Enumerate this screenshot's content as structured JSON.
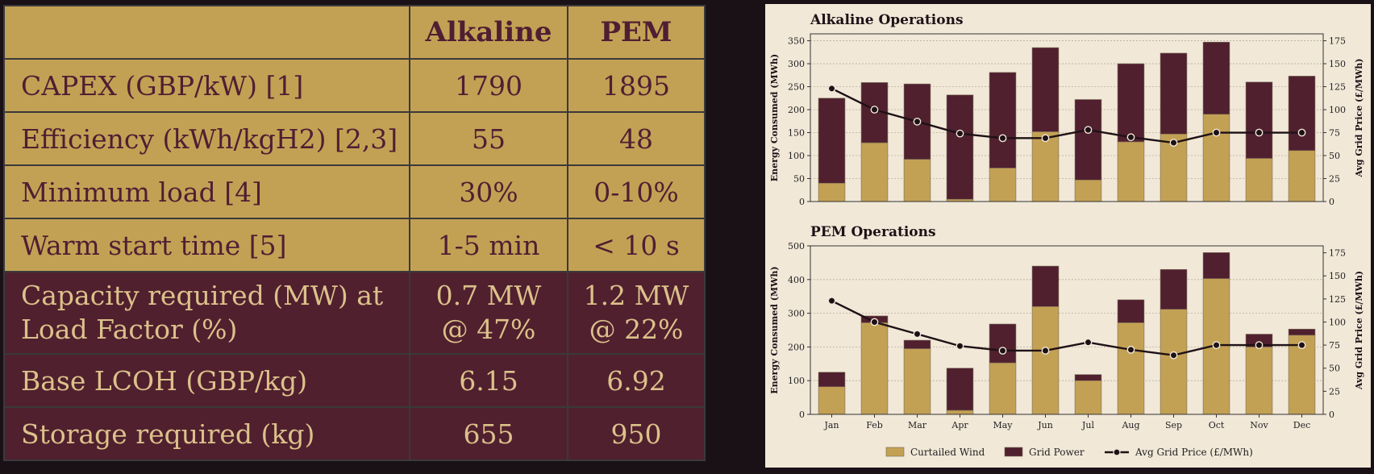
{
  "table": {
    "headers": [
      "",
      "Alkaline",
      "PEM"
    ],
    "rows": [
      {
        "label": "CAPEX (GBP/kW) [1]",
        "alkaline": "1790",
        "pem": "1895"
      },
      {
        "label": "Efficiency (kWh/kgH2) [2,3]",
        "alkaline": "55",
        "pem": "48"
      },
      {
        "label": "Minimum load [4]",
        "alkaline": "30%",
        "pem": "0-10%"
      },
      {
        "label": "Warm start time [5]",
        "alkaline": "1-5 min",
        "pem": "< 10 s"
      },
      {
        "label_line1": "Capacity required (MW) at",
        "label_line2": "Load Factor (%)",
        "alkaline_line1": "0.7 MW",
        "alkaline_line2": "@ 47%",
        "pem_line1": "1.2 MW",
        "pem_line2": "@ 22%"
      },
      {
        "label": "Base LCOH (GBP/kg)",
        "alkaline": "6.15",
        "pem": "6.92"
      },
      {
        "label": "Storage required (kg)",
        "alkaline": "655",
        "pem": "950"
      }
    ]
  },
  "colors": {
    "gold": "#c3a154",
    "wine": "#50202f",
    "price_line": "#1e1116",
    "panel_bg": "#f1e8d8"
  },
  "chart_data": [
    {
      "type": "bar",
      "stacked": true,
      "title": "Alkaline Operations",
      "ylabel": "Energy Consumed (MWh)",
      "y2label": "Avg Grid Price (£/MWh)",
      "categories": [
        "Jan",
        "Feb",
        "Mar",
        "Apr",
        "May",
        "Jun",
        "Jul",
        "Aug",
        "Sep",
        "Oct",
        "Nov",
        "Dec"
      ],
      "ylim": [
        0,
        365
      ],
      "yticks": [
        0,
        50,
        100,
        150,
        200,
        250,
        300,
        350
      ],
      "y2lim": [
        0,
        182.5
      ],
      "y2ticks": [
        0,
        25,
        50,
        75,
        100,
        125,
        150,
        175
      ],
      "series": [
        {
          "name": "Curtailed Wind",
          "values": [
            40,
            128,
            92,
            5,
            73,
            152,
            47,
            130,
            147,
            190,
            94,
            111
          ]
        },
        {
          "name": "Grid Power",
          "values": [
            185,
            131,
            164,
            227,
            208,
            183,
            175,
            170,
            176,
            157,
            166,
            162
          ]
        }
      ],
      "line": {
        "name": "Avg Grid Price (£/MWh)",
        "values": [
          123,
          100,
          87,
          74,
          69,
          69,
          78,
          70,
          64,
          75,
          75,
          75
        ]
      },
      "grid": true
    },
    {
      "type": "bar",
      "stacked": true,
      "title": "PEM Operations",
      "ylabel": "Energy Consumed (MWh)",
      "y2label": "Avg Grid Price (£/MWh)",
      "categories": [
        "Jan",
        "Feb",
        "Mar",
        "Apr",
        "May",
        "Jun",
        "Jul",
        "Aug",
        "Sep",
        "Oct",
        "Nov",
        "Dec"
      ],
      "ylim": [
        0,
        500
      ],
      "yticks": [
        0,
        100,
        200,
        300,
        400,
        500
      ],
      "y2lim": [
        0,
        182.5
      ],
      "y2ticks": [
        0,
        25,
        50,
        75,
        100,
        125,
        150,
        175
      ],
      "series": [
        {
          "name": "Curtailed Wind",
          "values": [
            82,
            272,
            195,
            12,
            153,
            320,
            100,
            272,
            312,
            403,
            200,
            235
          ]
        },
        {
          "name": "Grid Power",
          "values": [
            43,
            20,
            25,
            125,
            115,
            120,
            18,
            68,
            118,
            77,
            38,
            18
          ]
        }
      ],
      "line": {
        "name": "Avg Grid Price (£/MWh)",
        "values": [
          123,
          100,
          87,
          74,
          69,
          69,
          78,
          70,
          64,
          75,
          75,
          75
        ]
      },
      "grid": true
    }
  ],
  "legend": {
    "items": [
      "Curtailed Wind",
      "Grid Power",
      "Avg Grid Price (£/MWh)"
    ],
    "position": "bottom"
  }
}
